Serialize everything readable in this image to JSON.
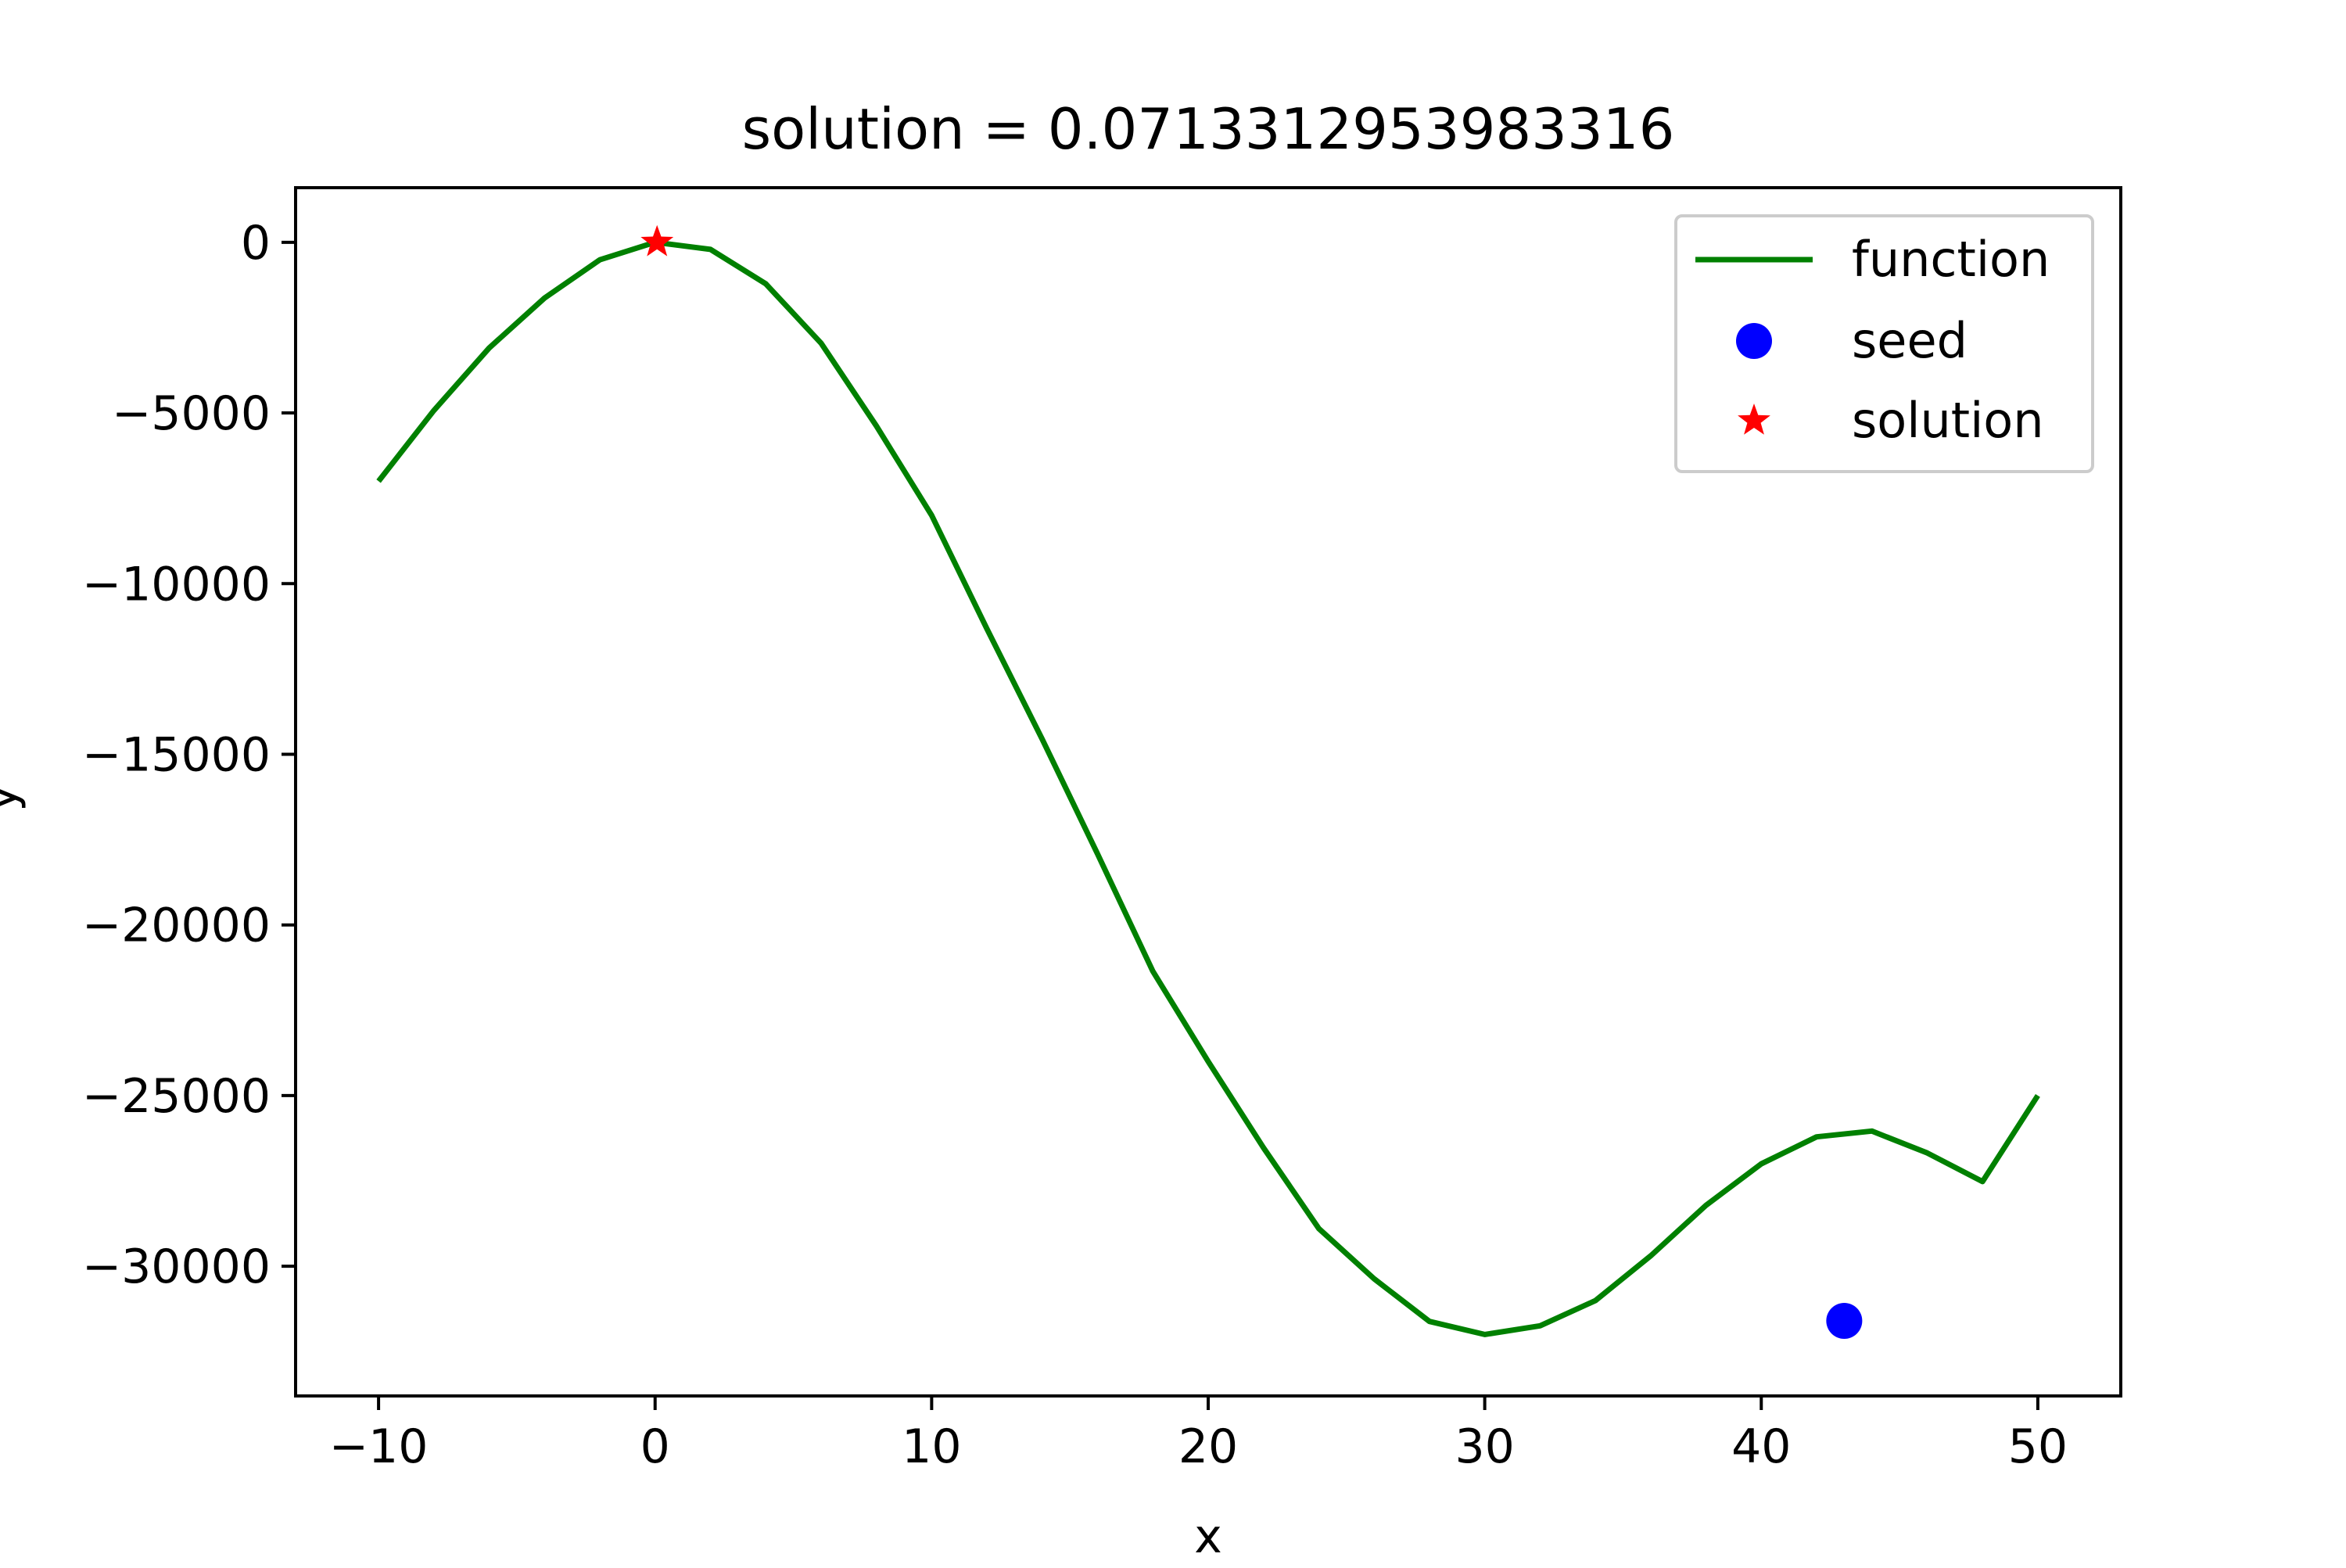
{
  "chart_data": {
    "type": "line",
    "title": "solution = 0.0713312953983316",
    "xlabel": "x",
    "ylabel": "y",
    "xlim": [
      -13,
      53
    ],
    "ylim": [
      -33800,
      1600
    ],
    "x_ticks": [
      -10,
      0,
      10,
      20,
      30,
      40,
      50
    ],
    "y_ticks": [
      0,
      -5000,
      -10000,
      -15000,
      -20000,
      -25000,
      -30000
    ],
    "x_tick_labels": [
      "−10",
      "0",
      "10",
      "20",
      "30",
      "40",
      "50"
    ],
    "y_tick_labels": [
      "0",
      "−5000",
      "−10000",
      "−15000",
      "−20000",
      "−25000",
      "−30000"
    ],
    "series": [
      {
        "name": "function",
        "kind": "line",
        "color": "#008000",
        "x": [
          -10,
          -8,
          -6,
          -4,
          -2,
          0,
          2,
          4,
          6,
          8,
          10,
          12,
          14,
          16,
          18,
          20,
          22,
          24,
          26,
          28,
          30,
          32,
          34,
          36,
          38,
          40,
          42,
          44,
          46,
          48,
          50
        ],
        "y": [
          -7000,
          -4928,
          -3096,
          -1632,
          -512,
          0,
          -208,
          -1216,
          -2952,
          -5376,
          -8000,
          -11328,
          -14560,
          -17920,
          -21360,
          -24000,
          -26528,
          -28896,
          -30368,
          -31616,
          -32000,
          -31744,
          -31008,
          -29696,
          -28216,
          -27000,
          -26208,
          -26040,
          -26680,
          -27520,
          -25000
        ]
      },
      {
        "name": "seed",
        "kind": "marker",
        "marker": "circle",
        "color": "#0000ff",
        "x": [
          43
        ],
        "y": [
          -31600
        ]
      },
      {
        "name": "solution",
        "kind": "marker",
        "marker": "star",
        "color": "#ff0000",
        "x": [
          0.0713312953983316
        ],
        "y": [
          0
        ]
      }
    ],
    "legend": {
      "placement": "top-right",
      "entries": [
        "function",
        "seed",
        "solution"
      ]
    },
    "grid": false
  }
}
